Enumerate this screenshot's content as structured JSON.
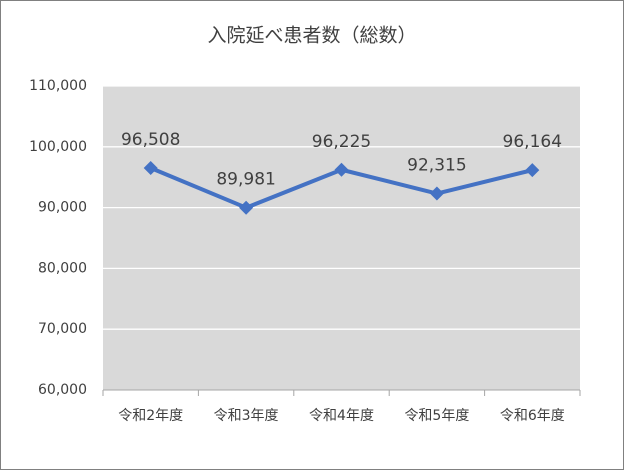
{
  "chart_data": {
    "type": "line",
    "title": "入院延べ患者数（総数）",
    "categories": [
      "令和2年度",
      "令和3年度",
      "令和4年度",
      "令和5年度",
      "令和6年度"
    ],
    "series": [
      {
        "name": "入院延べ患者数",
        "color": "#4472c4",
        "values": [
          96508,
          89981,
          96225,
          92315,
          96164
        ],
        "value_labels": [
          "96,508",
          "89,981",
          "96,225",
          "92,315",
          "96,164"
        ]
      }
    ],
    "ylim": [
      60000,
      110000
    ],
    "yticks": [
      {
        "value": 60000,
        "label": "60,000"
      },
      {
        "value": 70000,
        "label": "70,000"
      },
      {
        "value": 80000,
        "label": "80,000"
      },
      {
        "value": 90000,
        "label": "90,000"
      },
      {
        "value": 100000,
        "label": "100,000"
      },
      {
        "value": 110000,
        "label": "110,000"
      }
    ],
    "grid": true,
    "plot_background": "#d9d9d9"
  }
}
